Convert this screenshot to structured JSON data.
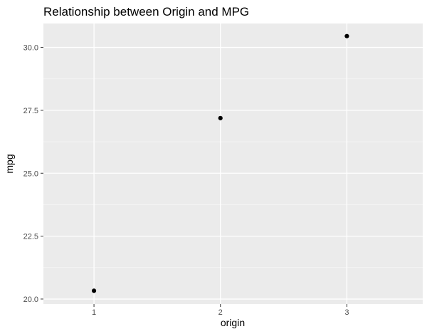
{
  "chart_data": {
    "type": "scatter",
    "title": "Relationship between Origin and MPG",
    "xlabel": "origin",
    "ylabel": "mpg",
    "x": [
      1,
      2,
      3
    ],
    "y": [
      20.33,
      27.19,
      30.45
    ],
    "xlim": [
      0.6,
      3.6
    ],
    "ylim": [
      19.8,
      30.95
    ],
    "x_ticks": [
      1,
      2,
      3
    ],
    "x_tick_labels": [
      "1",
      "2",
      "3"
    ],
    "y_ticks": [
      20,
      22.5,
      25,
      27.5,
      30
    ],
    "y_tick_labels": [
      "20.0",
      "22.5",
      "25.0",
      "27.5",
      "30.0"
    ],
    "grid": true,
    "legend": "none"
  },
  "colors": {
    "panel_background": "#ebebeb",
    "grid_major": "#ffffff",
    "grid_minor": "#f5f5f5",
    "point": "#000000",
    "tick_mark": "#333333",
    "tick_label": "#4d4d4d"
  }
}
